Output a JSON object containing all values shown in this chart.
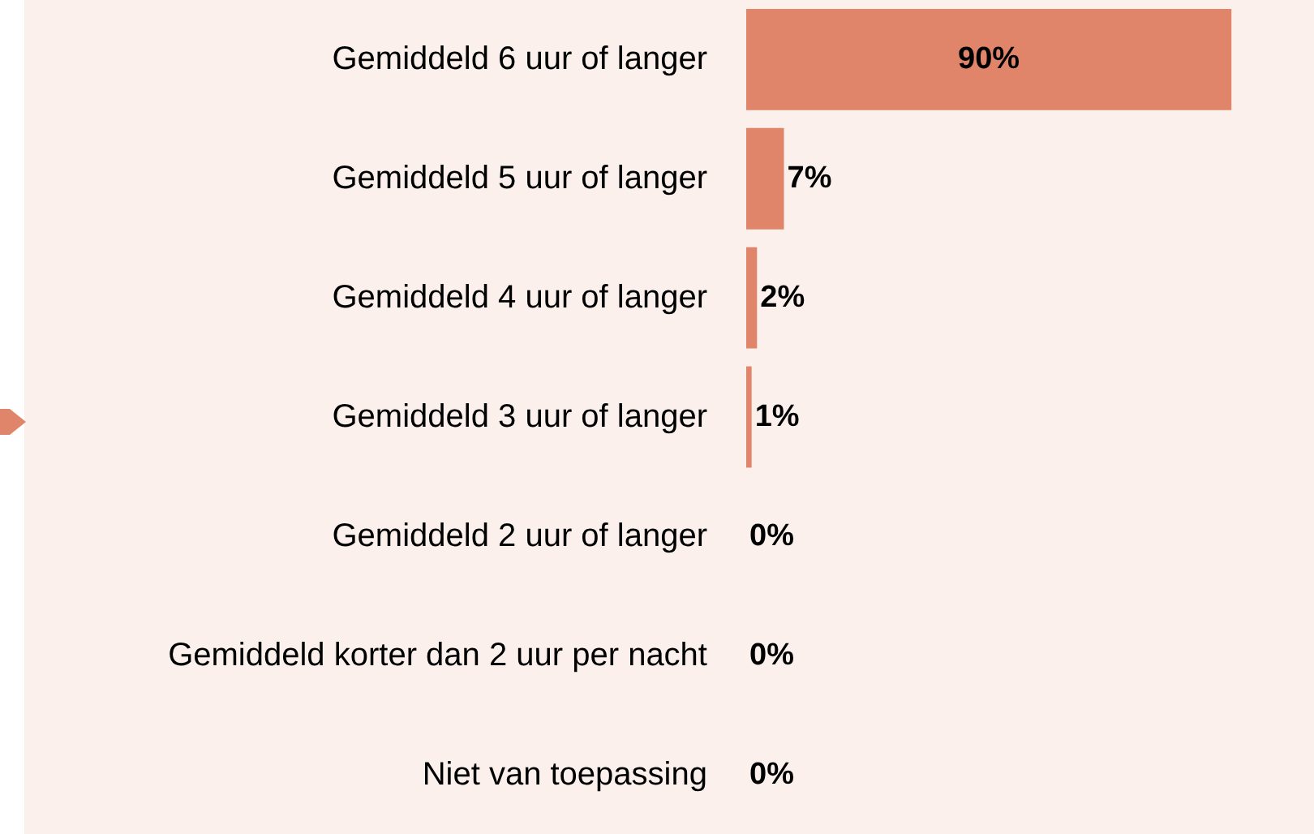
{
  "chart_data": {
    "type": "bar",
    "orientation": "horizontal",
    "categories": [
      "Gemiddeld 6 uur of langer",
      "Gemiddeld 5 uur of langer",
      "Gemiddeld 4 uur of langer",
      "Gemiddeld 3 uur of langer",
      "Gemiddeld 2 uur of langer",
      "Gemiddeld korter dan 2 uur per nacht",
      "Niet van toepassing"
    ],
    "values": [
      90,
      7,
      2,
      1,
      0,
      0,
      0
    ],
    "value_labels": [
      "90%",
      "7%",
      "2%",
      "1%",
      "0%",
      "0%",
      "0%"
    ],
    "color": "#e0856a"
  }
}
